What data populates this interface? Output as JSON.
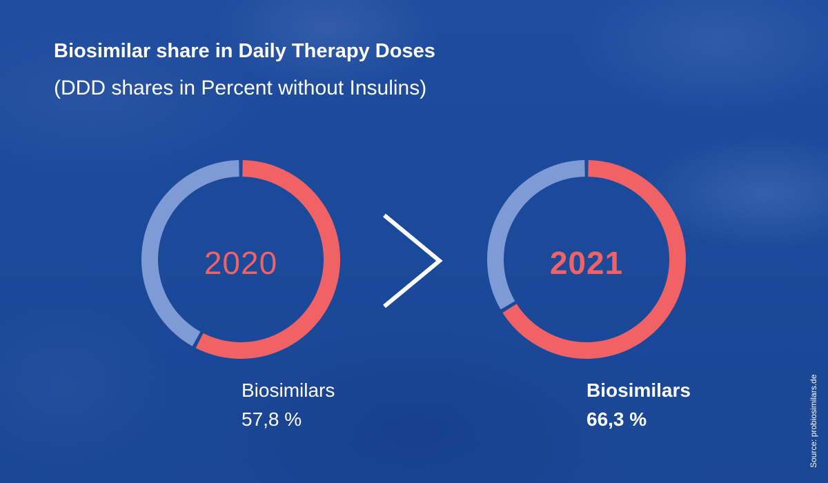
{
  "title": "Biosimilar share in Daily Therapy Doses",
  "subtitle": "(DDD shares in Percent without Insulins)",
  "source": "Source: probiosimilars.de",
  "colors": {
    "biosimilar": "#f06266",
    "other": "#7f9bd6",
    "arrow": "#ffffff"
  },
  "chart_data": [
    {
      "type": "pie",
      "year": "2020",
      "label": "Biosimilars",
      "value_text": "57,8 %",
      "values": [
        57.8,
        42.2
      ]
    },
    {
      "type": "pie",
      "year": "2021",
      "label": "Biosimilars",
      "value_text": "66,3 %",
      "values": [
        66.3,
        33.7
      ]
    }
  ]
}
